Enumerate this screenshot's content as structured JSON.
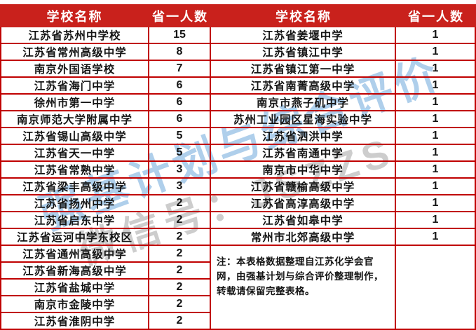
{
  "colors": {
    "header_bg": "#c9211c",
    "border": "#c00000",
    "header_text": "#ffffff",
    "cell_text": "#141414",
    "watermark_blue": "#6fa8dc",
    "watermark_gray": "#8a8a8a"
  },
  "table": {
    "header": {
      "columns": [
        "学校名称",
        "省一人数",
        "学校名称",
        "省一人数"
      ]
    },
    "left_rows": [
      {
        "school": "江苏省苏州中学校",
        "count": "15"
      },
      {
        "school": "江苏省常州高级中学",
        "count": "8"
      },
      {
        "school": "南京外国语学校",
        "count": "7"
      },
      {
        "school": "江苏省海门中学",
        "count": "6"
      },
      {
        "school": "徐州市第一中学",
        "count": "6"
      },
      {
        "school": "南京师范大学附属中学",
        "count": "6"
      },
      {
        "school": "江苏省锡山高级中学",
        "count": "5"
      },
      {
        "school": "江苏省天一中学",
        "count": "5"
      },
      {
        "school": "江苏省常熟中学",
        "count": "3"
      },
      {
        "school": "江苏省梁丰高级中学",
        "count": "3"
      },
      {
        "school": "江苏省扬州中学",
        "count": "2"
      },
      {
        "school": "江苏省启东中学",
        "count": "2"
      },
      {
        "school": "江苏省运河中学东校区",
        "count": "2"
      },
      {
        "school": "江苏省通州高级中学",
        "count": "2"
      },
      {
        "school": "江苏省新海高级中学",
        "count": "2"
      },
      {
        "school": "江苏省盐城中学",
        "count": "2"
      },
      {
        "school": "南京市金陵中学",
        "count": "2"
      },
      {
        "school": "江苏省淮阴中学",
        "count": "2"
      }
    ],
    "right_rows": [
      {
        "school": "江苏省姜堰中学",
        "count": "1"
      },
      {
        "school": "江苏省镇江中学",
        "count": "1"
      },
      {
        "school": "江苏省镇江第一中学",
        "count": "1"
      },
      {
        "school": "江苏省南菁高级中学",
        "count": "1"
      },
      {
        "school": "南京市燕子矶中学",
        "count": "1"
      },
      {
        "school": "苏州工业园区星海实验中学",
        "count": "1"
      },
      {
        "school": "江苏省泗洪中学",
        "count": "1"
      },
      {
        "school": "江苏省南通中学",
        "count": "1"
      },
      {
        "school": "南京市中华中学",
        "count": "1"
      },
      {
        "school": "江苏省赣榆高级中学",
        "count": "1"
      },
      {
        "school": "江苏省高淳高级中学",
        "count": "1"
      },
      {
        "school": "江苏省如皋中学",
        "count": "1"
      },
      {
        "school": "常州市北郊高级中学",
        "count": "1"
      }
    ],
    "note": "注：本表格数据整理自江苏化学会官网，由强基计划与综合评价整理制作，转载请保留完整表格。"
  },
  "watermark": {
    "line1": "强基计划与综合评价",
    "line2": "微信号：JSZZS"
  }
}
